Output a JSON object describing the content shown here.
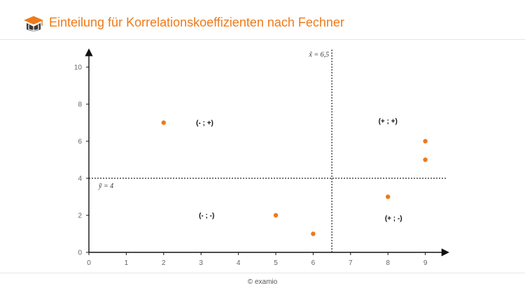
{
  "header": {
    "title": "Einteilung für Korrelationskoeffizienten nach Fechner",
    "logo_icon": "graduation-cap-book-icon",
    "accent_color": "#ee7a1a"
  },
  "footer": {
    "copyright": "© examio"
  },
  "chart_data": {
    "type": "scatter",
    "title": "",
    "xlabel": "",
    "ylabel": "",
    "xlim": [
      0,
      9.5
    ],
    "ylim": [
      0,
      10.8
    ],
    "x_ticks": [
      0,
      1,
      2,
      3,
      4,
      5,
      6,
      7,
      8,
      9
    ],
    "y_ticks": [
      0,
      2,
      4,
      6,
      8,
      10
    ],
    "grid": false,
    "point_color": "#ee7a1a",
    "points": [
      {
        "x": 2,
        "y": 7
      },
      {
        "x": 5,
        "y": 2
      },
      {
        "x": 6,
        "y": 1
      },
      {
        "x": 8,
        "y": 3
      },
      {
        "x": 9,
        "y": 6
      },
      {
        "x": 9,
        "y": 5
      }
    ],
    "reference_lines": {
      "x_mean": {
        "value": 6.5,
        "label": "x̃ = 6,5"
      },
      "y_mean": {
        "value": 4,
        "label": "ỹ = 4"
      }
    },
    "quadrant_labels": [
      {
        "text": "(- ; +)",
        "x": 3.1,
        "y": 7
      },
      {
        "text": "(+ ; +)",
        "x": 8,
        "y": 7.1
      },
      {
        "text": "(- ; -)",
        "x": 3.15,
        "y": 2
      },
      {
        "text": "(+ ; -)",
        "x": 8.15,
        "y": 1.85
      }
    ]
  }
}
